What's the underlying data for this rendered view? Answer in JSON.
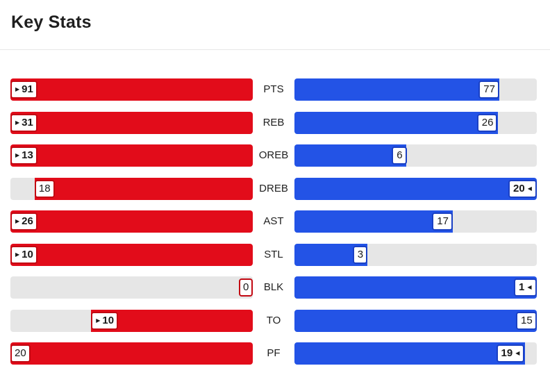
{
  "title": "Key Stats",
  "colors": {
    "home": "#e20c1a",
    "away": "#2353e6",
    "track": "#e6e6e6"
  },
  "stats": [
    {
      "label": "PTS",
      "left": "91",
      "right": "77",
      "left_fraction": 1.0,
      "right_fraction": 0.846,
      "leader": "left"
    },
    {
      "label": "REB",
      "left": "31",
      "right": "26",
      "left_fraction": 1.0,
      "right_fraction": 0.839,
      "leader": "left"
    },
    {
      "label": "OREB",
      "left": "13",
      "right": "6",
      "left_fraction": 1.0,
      "right_fraction": 0.462,
      "leader": "left"
    },
    {
      "label": "DREB",
      "left": "18",
      "right": "20",
      "left_fraction": 0.9,
      "right_fraction": 1.0,
      "leader": "right"
    },
    {
      "label": "AST",
      "left": "26",
      "right": "17",
      "left_fraction": 1.0,
      "right_fraction": 0.654,
      "leader": "left"
    },
    {
      "label": "STL",
      "left": "10",
      "right": "3",
      "left_fraction": 1.0,
      "right_fraction": 0.3,
      "leader": "left"
    },
    {
      "label": "BLK",
      "left": "0",
      "right": "1",
      "left_fraction": 0.0,
      "right_fraction": 1.0,
      "leader": "right"
    },
    {
      "label": "TO",
      "left": "10",
      "right": "15",
      "left_fraction": 0.667,
      "right_fraction": 1.0,
      "leader": "left"
    },
    {
      "label": "PF",
      "left": "20",
      "right": "19",
      "left_fraction": 1.0,
      "right_fraction": 0.95,
      "leader": "right"
    }
  ]
}
